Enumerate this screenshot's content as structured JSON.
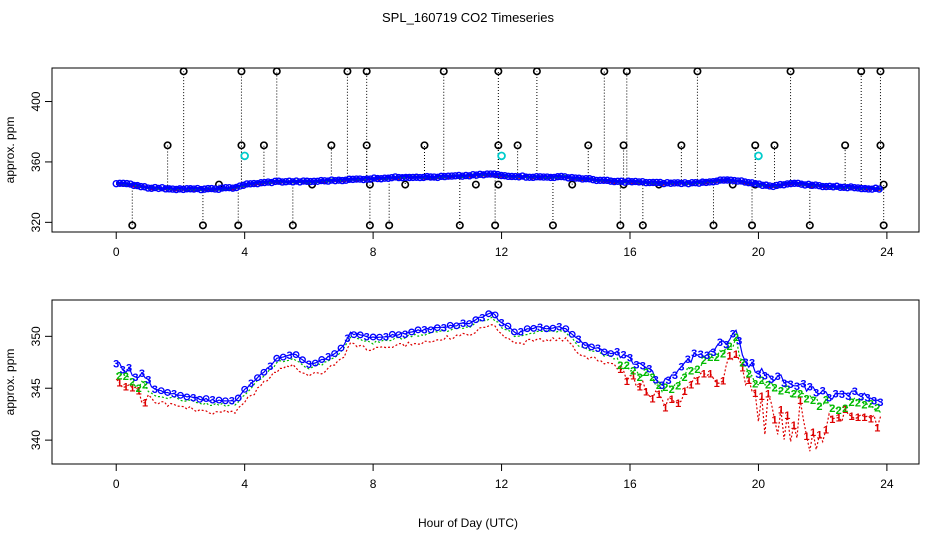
{
  "title": "SPL_160719  CO2 Timeseries",
  "colors": {
    "s1": "#dd0000",
    "s2": "#00bb00",
    "s3": "#0000ff",
    "outlier": "#000000",
    "flag": "#00cccc"
  },
  "chart_data": [
    {
      "type": "scatter",
      "ylabel": "approx. ppm",
      "xlim": [
        -2,
        25
      ],
      "ylim": [
        313.6,
        422.2
      ],
      "xticks": [
        0,
        4,
        8,
        12,
        16,
        20,
        24
      ],
      "yticks": [
        320,
        360,
        400
      ],
      "series": [
        {
          "name": "1",
          "color": "#dd0000"
        },
        {
          "name": "2",
          "color": "#00bb00"
        },
        {
          "name": "3",
          "color": "#0000ff"
        }
      ],
      "baseline": {
        "x": [
          0,
          0.5,
          1,
          2,
          3,
          3.7,
          4,
          4.5,
          5,
          6,
          7,
          8,
          9,
          10,
          11,
          11.7,
          12,
          13,
          14,
          15,
          15.5,
          16,
          17,
          18,
          19,
          19.5,
          20,
          20.5,
          21,
          22,
          23,
          23.8
        ],
        "y": [
          346,
          345,
          343,
          342,
          342,
          343,
          345,
          346,
          347,
          347,
          348,
          349,
          350,
          350,
          351,
          352,
          351,
          350,
          350,
          348,
          347,
          347,
          346,
          346,
          348,
          347,
          345,
          344,
          346,
          344,
          343,
          342
        ]
      },
      "outliers": {
        "x": [
          0.5,
          1.6,
          2.1,
          2.7,
          3.2,
          3.8,
          3.9,
          3.9,
          4.6,
          5.0,
          5.5,
          6.1,
          6.7,
          7.2,
          7.8,
          7.8,
          7.9,
          7.9,
          8.5,
          9.0,
          9.6,
          10.2,
          10.7,
          11.2,
          11.8,
          11.9,
          11.9,
          11.9,
          12.5,
          13.1,
          13.6,
          14.2,
          14.7,
          15.2,
          15.7,
          15.8,
          15.8,
          15.9,
          16.4,
          16.9,
          17.6,
          18.1,
          18.6,
          19.2,
          19.8,
          19.9,
          19.9,
          20.5,
          21.0,
          21.6,
          22.7,
          23.2,
          23.8,
          23.8,
          23.9,
          23.9
        ],
        "y": [
          318,
          371,
          420,
          318,
          345,
          318,
          371,
          420,
          371,
          420,
          318,
          345,
          371,
          420,
          371,
          420,
          318,
          345,
          318,
          345,
          371,
          420,
          318,
          345,
          318,
          345,
          371,
          420,
          371,
          420,
          318,
          345,
          371,
          420,
          318,
          345,
          371,
          420,
          318,
          345,
          371,
          420,
          318,
          345,
          318,
          345,
          371,
          371,
          420,
          318,
          371,
          420,
          371,
          420,
          318,
          345
        ]
      },
      "flags": {
        "x": [
          4.0,
          12.0,
          20.0
        ],
        "y": [
          364,
          364,
          364
        ]
      }
    },
    {
      "type": "scatter",
      "ylabel": "approx. ppm",
      "xlabel": "Hour of Day (UTC)",
      "xlim": [
        -2,
        25
      ],
      "ylim": [
        337.7,
        353.5
      ],
      "xticks": [
        0,
        4,
        8,
        12,
        16,
        20,
        24
      ],
      "yticks": [
        340,
        345,
        350
      ],
      "series": [
        {
          "name": "1",
          "color": "#dd0000"
        },
        {
          "name": "2",
          "color": "#00bb00"
        },
        {
          "name": "3",
          "color": "#0000ff"
        }
      ],
      "baseline": {
        "x": [
          0,
          0.4,
          0.8,
          1.2,
          2,
          3,
          3.7,
          4,
          4.5,
          5,
          5.5,
          6,
          6.5,
          7,
          7.3,
          8,
          9,
          10,
          11,
          11.7,
          12,
          12.5,
          13,
          14,
          14.5,
          15,
          15.5,
          16,
          16.5,
          17,
          17.5,
          18,
          18.5,
          19,
          19.3,
          19.6,
          20,
          20.5,
          21,
          21.5,
          22,
          22.5,
          23,
          23.5,
          23.8
        ],
        "y": [
          347,
          346,
          345.5,
          344.5,
          344,
          343.5,
          343.5,
          344.5,
          346,
          347.5,
          348,
          347,
          347.5,
          348.5,
          350,
          349.5,
          350,
          350.5,
          351,
          352,
          351,
          350,
          350.5,
          350.5,
          349,
          348.5,
          348,
          347,
          346.5,
          345,
          346,
          347.5,
          348,
          349,
          350,
          347,
          346,
          345.5,
          345,
          344.5,
          344,
          343.5,
          344,
          343.5,
          343
        ]
      },
      "excursions": {
        "s1_min_y": 338.3,
        "s1_min_x": 20.4
      }
    }
  ]
}
